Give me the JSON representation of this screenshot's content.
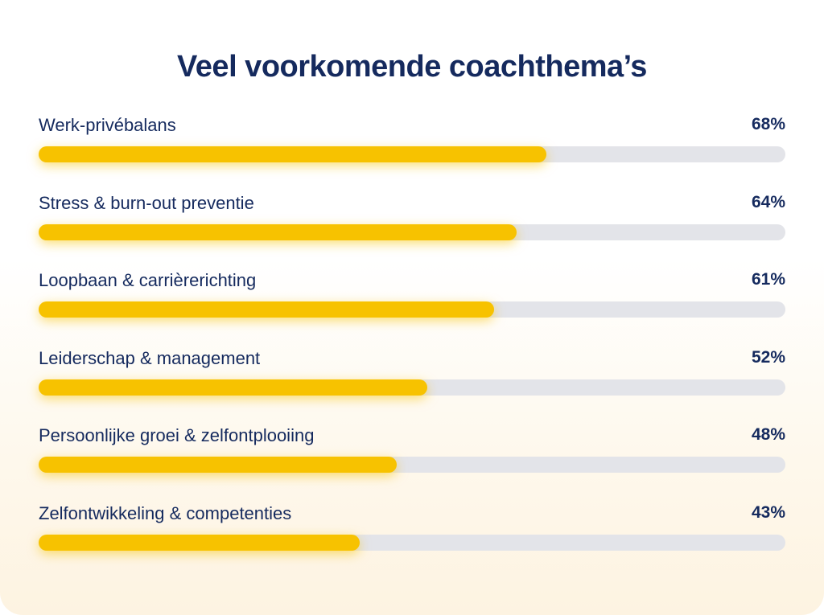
{
  "title": "Veel voorkomende coachthema’s",
  "colors": {
    "title": "#152a5e",
    "bar_fill": "#f7c200",
    "bar_track": "#e3e4e9"
  },
  "chart_data": {
    "type": "bar",
    "orientation": "horizontal",
    "title": "Veel voorkomende coachthema’s",
    "categories": [
      "Werk-privébalans",
      "Stress & burn-out preventie",
      "Loopbaan & carrièrerichting",
      "Leiderschap & management",
      "Persoonlijke groei & zelfontplooiing",
      "Zelfontwikkeling & competenties"
    ],
    "values": [
      68,
      64,
      61,
      52,
      48,
      43
    ],
    "value_labels": [
      "68%",
      "64%",
      "61%",
      "52%",
      "48%",
      "43%"
    ],
    "ylim": [
      0,
      100
    ],
    "unit": "%"
  }
}
